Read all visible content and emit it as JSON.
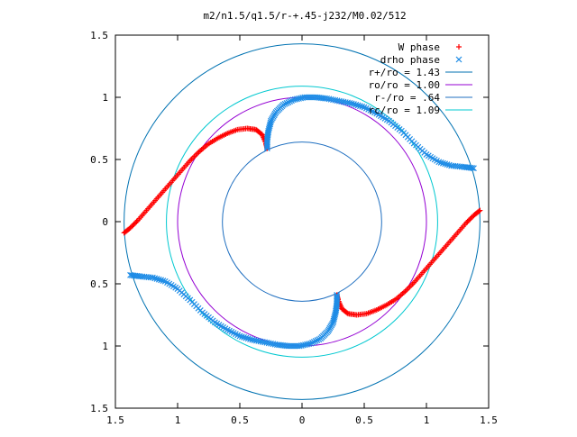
{
  "chart_data": {
    "type": "scatter",
    "title": "m2/n1.5/q1.5/r-+.45-j232/M0.02/512",
    "xlabel": "",
    "ylabel": "",
    "xlim": [
      -1.5,
      1.5
    ],
    "ylim": [
      -1.5,
      1.5
    ],
    "x_ticks": [
      {
        "value": -1.5,
        "label": "1.5"
      },
      {
        "value": -1.0,
        "label": "1"
      },
      {
        "value": -0.5,
        "label": "0.5"
      },
      {
        "value": 0.0,
        "label": "0"
      },
      {
        "value": 0.5,
        "label": "0.5"
      },
      {
        "value": 1.0,
        "label": "1"
      },
      {
        "value": 1.5,
        "label": "1.5"
      }
    ],
    "y_ticks": [
      {
        "value": 1.5,
        "label": "1.5"
      },
      {
        "value": 1.0,
        "label": "1"
      },
      {
        "value": 0.5,
        "label": "0.5"
      },
      {
        "value": 0.0,
        "label": "0"
      },
      {
        "value": -0.5,
        "label": "0.5"
      },
      {
        "value": -1.0,
        "label": "1"
      },
      {
        "value": -1.5,
        "label": "1.5"
      }
    ],
    "grid": false,
    "legend_position": "top-right",
    "circles": [
      {
        "name": "r+/ro = 1.43",
        "radius": 1.43,
        "color": "#0072b2"
      },
      {
        "name": "ro/ro = 1.00",
        "radius": 1.0,
        "color": "#9400d3"
      },
      {
        "name": "r-/ro = .64",
        "radius": 0.64,
        "color": "#1f6fc0"
      },
      {
        "name": "rc/ro = 1.09",
        "radius": 1.09,
        "color": "#00c8d0"
      }
    ],
    "series": [
      {
        "name": "W phase",
        "marker": "plus",
        "color": "#ff0000",
        "branches": [
          [
            [
              -1.43,
              -0.09
            ],
            [
              -1.38,
              -0.05
            ],
            [
              -1.32,
              0.01
            ],
            [
              -1.25,
              0.09
            ],
            [
              -1.18,
              0.17
            ],
            [
              -1.11,
              0.25
            ],
            [
              -1.04,
              0.33
            ],
            [
              -0.97,
              0.41
            ],
            [
              -0.9,
              0.49
            ],
            [
              -0.83,
              0.56
            ],
            [
              -0.76,
              0.62
            ],
            [
              -0.68,
              0.67
            ],
            [
              -0.6,
              0.71
            ],
            [
              -0.52,
              0.74
            ],
            [
              -0.44,
              0.75
            ],
            [
              -0.37,
              0.74
            ],
            [
              -0.32,
              0.7
            ],
            [
              -0.29,
              0.63
            ],
            [
              -0.28,
              0.59
            ]
          ],
          [
            [
              1.43,
              0.09
            ],
            [
              1.38,
              0.05
            ],
            [
              1.32,
              -0.01
            ],
            [
              1.25,
              -0.09
            ],
            [
              1.18,
              -0.17
            ],
            [
              1.11,
              -0.25
            ],
            [
              1.04,
              -0.33
            ],
            [
              0.97,
              -0.41
            ],
            [
              0.9,
              -0.49
            ],
            [
              0.83,
              -0.56
            ],
            [
              0.76,
              -0.62
            ],
            [
              0.68,
              -0.67
            ],
            [
              0.6,
              -0.71
            ],
            [
              0.52,
              -0.74
            ],
            [
              0.44,
              -0.75
            ],
            [
              0.37,
              -0.74
            ],
            [
              0.32,
              -0.7
            ],
            [
              0.29,
              -0.63
            ],
            [
              0.28,
              -0.59
            ]
          ]
        ]
      },
      {
        "name": "drho phase",
        "marker": "cross",
        "color": "#1e8ce6",
        "branches": [
          [
            [
              -0.28,
              0.59
            ],
            [
              -0.28,
              0.66
            ],
            [
              -0.27,
              0.73
            ],
            [
              -0.25,
              0.81
            ],
            [
              -0.21,
              0.88
            ],
            [
              -0.15,
              0.94
            ],
            [
              -0.07,
              0.98
            ],
            [
              0.02,
              1.0
            ],
            [
              0.11,
              1.0
            ],
            [
              0.2,
              0.99
            ],
            [
              0.3,
              0.97
            ],
            [
              0.4,
              0.95
            ],
            [
              0.5,
              0.92
            ],
            [
              0.6,
              0.87
            ],
            [
              0.7,
              0.81
            ],
            [
              0.8,
              0.73
            ],
            [
              0.9,
              0.63
            ],
            [
              1.0,
              0.54
            ],
            [
              1.1,
              0.48
            ],
            [
              1.2,
              0.45
            ],
            [
              1.3,
              0.44
            ],
            [
              1.38,
              0.43
            ]
          ],
          [
            [
              0.28,
              -0.59
            ],
            [
              0.28,
              -0.66
            ],
            [
              0.27,
              -0.73
            ],
            [
              0.25,
              -0.81
            ],
            [
              0.21,
              -0.88
            ],
            [
              0.15,
              -0.94
            ],
            [
              0.07,
              -0.98
            ],
            [
              -0.02,
              -1.0
            ],
            [
              -0.11,
              -1.0
            ],
            [
              -0.2,
              -0.99
            ],
            [
              -0.3,
              -0.97
            ],
            [
              -0.4,
              -0.95
            ],
            [
              -0.5,
              -0.92
            ],
            [
              -0.6,
              -0.87
            ],
            [
              -0.7,
              -0.81
            ],
            [
              -0.8,
              -0.73
            ],
            [
              -0.9,
              -0.63
            ],
            [
              -1.0,
              -0.54
            ],
            [
              -1.1,
              -0.48
            ],
            [
              -1.2,
              -0.45
            ],
            [
              -1.3,
              -0.44
            ],
            [
              -1.38,
              -0.43
            ]
          ]
        ]
      }
    ]
  }
}
